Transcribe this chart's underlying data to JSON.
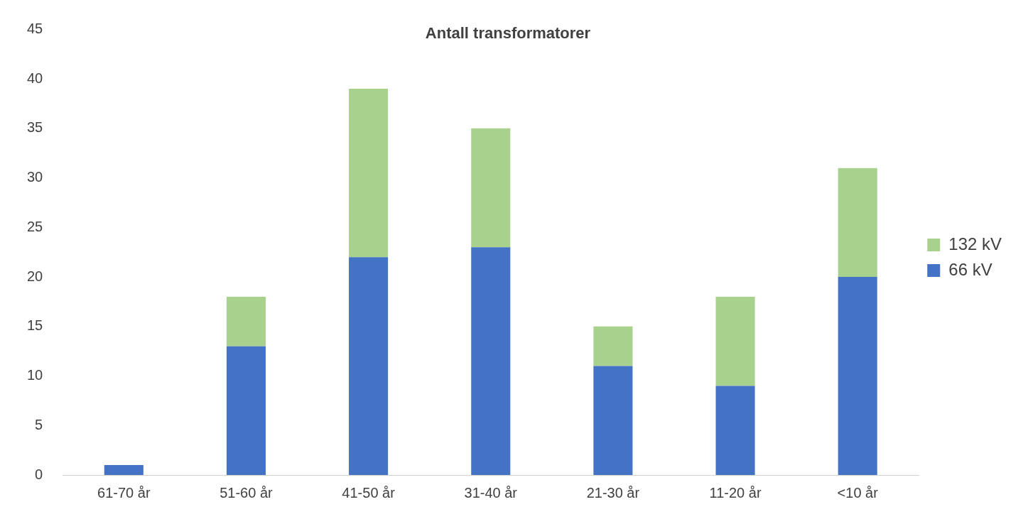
{
  "chart_data": {
    "type": "bar",
    "title": "Antall transformatorer",
    "categories": [
      "61-70 år",
      "51-60 år",
      "41-50 år",
      "31-40 år",
      "21-30 år",
      "11-20 år",
      "<10 år"
    ],
    "stacked": true,
    "series": [
      {
        "name": "66 kV",
        "color": "#4472c4",
        "values": [
          1,
          13,
          22,
          23,
          11,
          9,
          20
        ]
      },
      {
        "name": "132 kV",
        "color": "#a9d18e",
        "values": [
          0,
          5,
          17,
          12,
          4,
          9,
          11
        ]
      }
    ],
    "ylim": [
      0,
      45
    ],
    "yticks": [
      0,
      5,
      10,
      15,
      20,
      25,
      30,
      35,
      40,
      45
    ],
    "grid": false,
    "legend": "right"
  }
}
